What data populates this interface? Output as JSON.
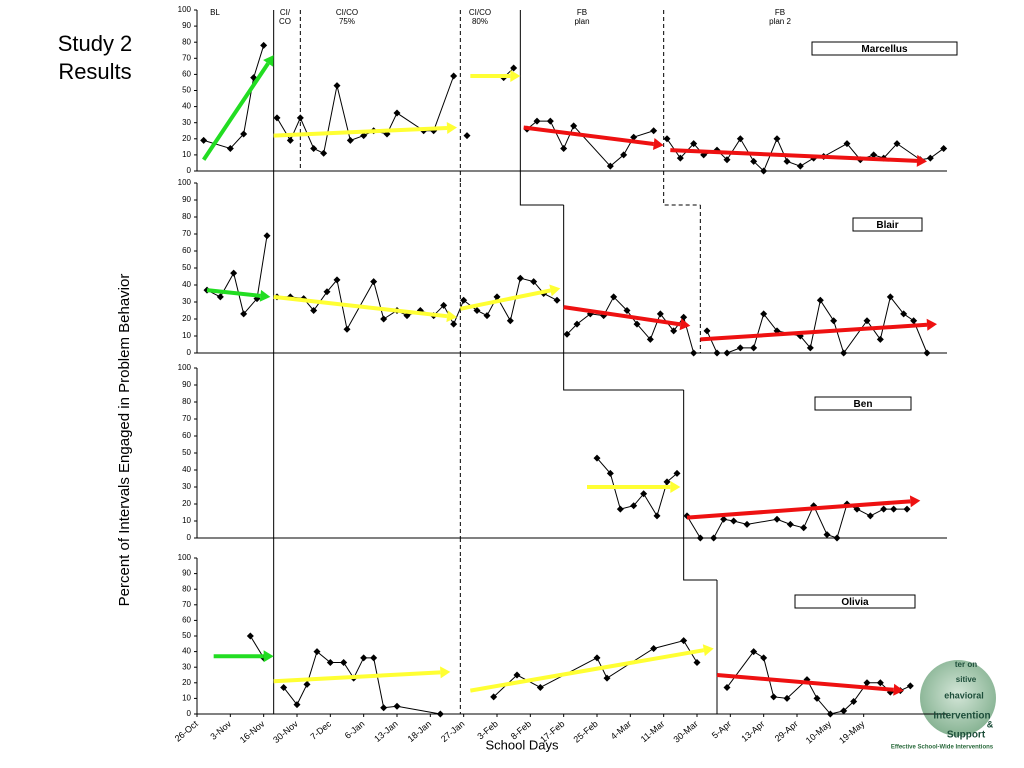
{
  "title": "Study 2 Results",
  "y_label": "Percent of Intervals Engaged in Problem Behavior",
  "logo": {
    "lines": [
      "ter on",
      "sitive",
      "ehavioral",
      "Intervention",
      "&",
      "Support"
    ],
    "tagline": "Effective School-Wide Interventions"
  },
  "chart_data": [
    {
      "type": "line",
      "title": "Marcellus",
      "xlim": [
        0,
        22.5
      ],
      "ylim": [
        0,
        100
      ],
      "yticks": [
        0,
        10,
        20,
        30,
        40,
        50,
        60,
        70,
        80,
        90,
        100
      ],
      "phase_labels": [
        [
          "BL"
        ],
        [
          "CI/",
          "CO"
        ],
        [
          "CI/CO",
          "75%"
        ],
        [
          "CI/CO",
          "80%"
        ],
        [
          "FB",
          "plan"
        ],
        [
          "FB",
          "plan 2"
        ]
      ],
      "x": [
        0.2,
        1.0,
        1.4,
        1.7,
        2.0,
        null,
        2.4,
        2.8,
        3.1,
        3.5,
        3.8,
        4.2,
        4.6,
        5.0,
        5.3,
        5.7,
        6.0,
        6.8,
        7.1,
        7.7,
        null,
        8.1,
        null,
        9.2,
        9.5,
        null,
        9.9,
        10.2,
        10.6,
        11.0,
        11.3,
        12.4,
        12.8,
        13.1,
        13.7,
        null,
        14.1,
        14.5,
        14.9,
        15.2,
        15.6,
        15.9,
        16.3,
        16.7,
        17.0,
        17.4,
        17.7,
        18.1,
        18.5,
        18.8,
        19.5,
        19.9,
        20.3,
        20.6,
        21.0,
        21.7,
        22.0,
        22.4
      ],
      "values": [
        19,
        14,
        23,
        58,
        78,
        null,
        33,
        19,
        33,
        14,
        11,
        53,
        19,
        22,
        25,
        23,
        36,
        25,
        25,
        59,
        null,
        22,
        null,
        58,
        64,
        null,
        26,
        31,
        31,
        14,
        28,
        3,
        10,
        21,
        25,
        null,
        20,
        8,
        17,
        10,
        13,
        7,
        20,
        6,
        0,
        20,
        6,
        3,
        8,
        9,
        17,
        7,
        10,
        8,
        17,
        7,
        8,
        14
      ],
      "trend_lines": [
        {
          "color": "#22dd22",
          "x": [
            0.2,
            2.3
          ],
          "values": [
            7,
            72
          ]
        },
        {
          "color": "#ffff33",
          "x": [
            2.3,
            7.8
          ],
          "values": [
            22,
            27
          ]
        },
        {
          "color": "#ffff33",
          "x": [
            8.2,
            9.7
          ],
          "values": [
            59,
            59
          ]
        },
        {
          "color": "#ee1111",
          "x": [
            9.8,
            14.0
          ],
          "values": [
            27,
            16
          ]
        },
        {
          "color": "#ee1111",
          "x": [
            14.2,
            21.9
          ],
          "values": [
            13,
            6
          ]
        }
      ],
      "phase_lines": [
        {
          "x": 2.3,
          "style": "solid"
        },
        {
          "x": 3.1,
          "style": "dashed"
        },
        {
          "x": 7.9,
          "style": "dashed"
        },
        {
          "x": 9.7,
          "style": "solid"
        },
        {
          "x": 14.0,
          "style": "dashed"
        }
      ]
    },
    {
      "type": "line",
      "title": "Blair",
      "xlim": [
        0,
        22.5
      ],
      "ylim": [
        0,
        100
      ],
      "yticks": [
        0,
        10,
        20,
        30,
        40,
        50,
        60,
        70,
        80,
        90,
        100
      ],
      "x": [
        0.3,
        0.7,
        1.1,
        1.4,
        1.8,
        2.1,
        null,
        2.4,
        2.8,
        3.2,
        3.5,
        3.9,
        4.2,
        4.5,
        5.3,
        5.6,
        6.0,
        6.3,
        6.7,
        7.1,
        7.4,
        7.7,
        8.0,
        8.4,
        8.7,
        9.0,
        9.4,
        9.7,
        10.1,
        10.4,
        10.8,
        null,
        11.1,
        11.4,
        11.8,
        12.2,
        12.5,
        12.9,
        13.2,
        13.6,
        13.9,
        14.3,
        14.6,
        14.9,
        null,
        15.3,
        15.6,
        15.9,
        16.3,
        16.7,
        17.0,
        17.4,
        18.1,
        18.4,
        18.7,
        19.1,
        19.4,
        20.1,
        20.5,
        20.8,
        21.2,
        21.5,
        21.9
      ],
      "values": [
        37,
        33,
        47,
        23,
        32,
        69,
        null,
        33,
        33,
        32,
        25,
        36,
        43,
        14,
        42,
        20,
        25,
        22,
        25,
        22,
        28,
        17,
        31,
        25,
        22,
        33,
        19,
        44,
        42,
        35,
        31,
        null,
        11,
        17,
        23,
        22,
        33,
        25,
        17,
        8,
        23,
        13,
        21,
        0,
        null,
        13,
        0,
        0,
        3,
        3,
        23,
        13,
        10,
        3,
        31,
        19,
        0,
        19,
        8,
        33,
        23,
        19,
        0
      ],
      "trend_lines": [
        {
          "color": "#22dd22",
          "x": [
            0.3,
            2.2
          ],
          "values": [
            37,
            33
          ]
        },
        {
          "color": "#ffff33",
          "x": [
            2.3,
            7.8
          ],
          "values": [
            33,
            21
          ]
        },
        {
          "color": "#ffff33",
          "x": [
            7.9,
            10.9
          ],
          "values": [
            26,
            38
          ]
        },
        {
          "color": "#ee1111",
          "x": [
            11.0,
            14.8
          ],
          "values": [
            27,
            16
          ]
        },
        {
          "color": "#ee1111",
          "x": [
            15.1,
            22.2
          ],
          "values": [
            8,
            17
          ]
        }
      ],
      "phase_lines": [
        {
          "x": 2.3,
          "style": "solid"
        },
        {
          "x": 7.9,
          "style": "dashed"
        },
        {
          "x": 11.0,
          "style": "solid"
        },
        {
          "x": 15.1,
          "style": "dashed"
        }
      ]
    },
    {
      "type": "line",
      "title": "Ben",
      "xlim": [
        0,
        22.5
      ],
      "ylim": [
        0,
        100
      ],
      "yticks": [
        0,
        10,
        20,
        30,
        40,
        50,
        60,
        70,
        80,
        90,
        100
      ],
      "x": [
        12.0,
        12.4,
        12.7,
        13.1,
        13.4,
        13.8,
        14.1,
        14.4,
        null,
        14.7,
        15.1,
        15.5,
        15.8,
        16.1,
        16.5,
        17.4,
        17.8,
        18.2,
        18.5,
        18.9,
        19.2,
        19.5,
        19.8,
        20.2,
        20.6,
        20.9,
        21.3
      ],
      "values": [
        47,
        38,
        17,
        19,
        26,
        13,
        33,
        38,
        null,
        13,
        0,
        0,
        11,
        10,
        8,
        11,
        8,
        6,
        19,
        2,
        0,
        20,
        17,
        13,
        17,
        17,
        17
      ],
      "trend_lines": [
        {
          "color": "#ffff33",
          "x": [
            11.7,
            14.5
          ],
          "values": [
            30,
            30
          ]
        },
        {
          "color": "#ee1111",
          "x": [
            14.7,
            21.7
          ],
          "values": [
            12,
            22
          ]
        }
      ],
      "phase_lines": [
        {
          "x": 2.3,
          "style": "solid"
        },
        {
          "x": 7.9,
          "style": "dashed"
        },
        {
          "x": 14.6,
          "style": "solid"
        }
      ]
    },
    {
      "type": "line",
      "title": "Olivia",
      "xlim": [
        0,
        22.5
      ],
      "ylim": [
        0,
        100
      ],
      "yticks": [
        0,
        10,
        20,
        30,
        40,
        50,
        60,
        70,
        80,
        90,
        100
      ],
      "x_label": "School Days",
      "xticks": [
        {
          "value": 0,
          "label": "26-Oct"
        },
        {
          "value": 1,
          "label": "3-Nov"
        },
        {
          "value": 2,
          "label": "16-Nov"
        },
        {
          "value": 3,
          "label": "30-Nov"
        },
        {
          "value": 4,
          "label": "7-Dec"
        },
        {
          "value": 5,
          "label": "6-Jan"
        },
        {
          "value": 6,
          "label": "13-Jan"
        },
        {
          "value": 7,
          "label": "18-Jan"
        },
        {
          "value": 8,
          "label": "27-Jan"
        },
        {
          "value": 9,
          "label": "3-Feb"
        },
        {
          "value": 10,
          "label": "8-Feb"
        },
        {
          "value": 11,
          "label": "17-Feb"
        },
        {
          "value": 12,
          "label": "25-Feb"
        },
        {
          "value": 13,
          "label": "4-Mar"
        },
        {
          "value": 14,
          "label": "11-Mar"
        },
        {
          "value": 15,
          "label": "30-Mar"
        },
        {
          "value": 16,
          "label": "5-Apr"
        },
        {
          "value": 17,
          "label": "13-Apr"
        },
        {
          "value": 18,
          "label": "29-Apr"
        },
        {
          "value": 19,
          "label": "10-May"
        },
        {
          "value": 20,
          "label": "19-May"
        }
      ],
      "x": [
        1.6,
        2.0,
        null,
        2.6,
        3.0,
        3.3,
        3.6,
        4.0,
        4.4,
        4.7,
        5.0,
        5.3,
        5.6,
        6.0,
        7.3,
        null,
        8.9,
        9.6,
        10.3,
        12.0,
        12.3,
        13.7,
        14.6,
        15.0,
        null,
        15.9,
        16.7,
        17.0,
        17.3,
        17.7,
        18.3,
        18.6,
        19.0,
        19.4,
        19.7,
        20.1,
        20.5,
        20.8,
        21.1,
        21.4
      ],
      "values": [
        50,
        36,
        null,
        17,
        6,
        19,
        40,
        33,
        33,
        23,
        36,
        36,
        4,
        5,
        0,
        null,
        11,
        25,
        17,
        36,
        23,
        42,
        47,
        33,
        null,
        17,
        40,
        36,
        11,
        10,
        22,
        10,
        0,
        2,
        8,
        20,
        20,
        14,
        15,
        18
      ],
      "trend_lines": [
        {
          "color": "#22dd22",
          "x": [
            0.5,
            2.3
          ],
          "values": [
            37,
            37
          ]
        },
        {
          "color": "#ffff33",
          "x": [
            2.3,
            7.6
          ],
          "values": [
            21,
            27
          ]
        },
        {
          "color": "#ffff33",
          "x": [
            8.2,
            15.5
          ],
          "values": [
            15,
            42
          ]
        },
        {
          "color": "#ee1111",
          "x": [
            15.6,
            21.2
          ],
          "values": [
            25,
            15
          ]
        }
      ],
      "phase_lines": [
        {
          "x": 2.3,
          "style": "solid"
        },
        {
          "x": 7.9,
          "style": "dashed"
        },
        {
          "x": 15.6,
          "style": "solid"
        }
      ]
    }
  ]
}
